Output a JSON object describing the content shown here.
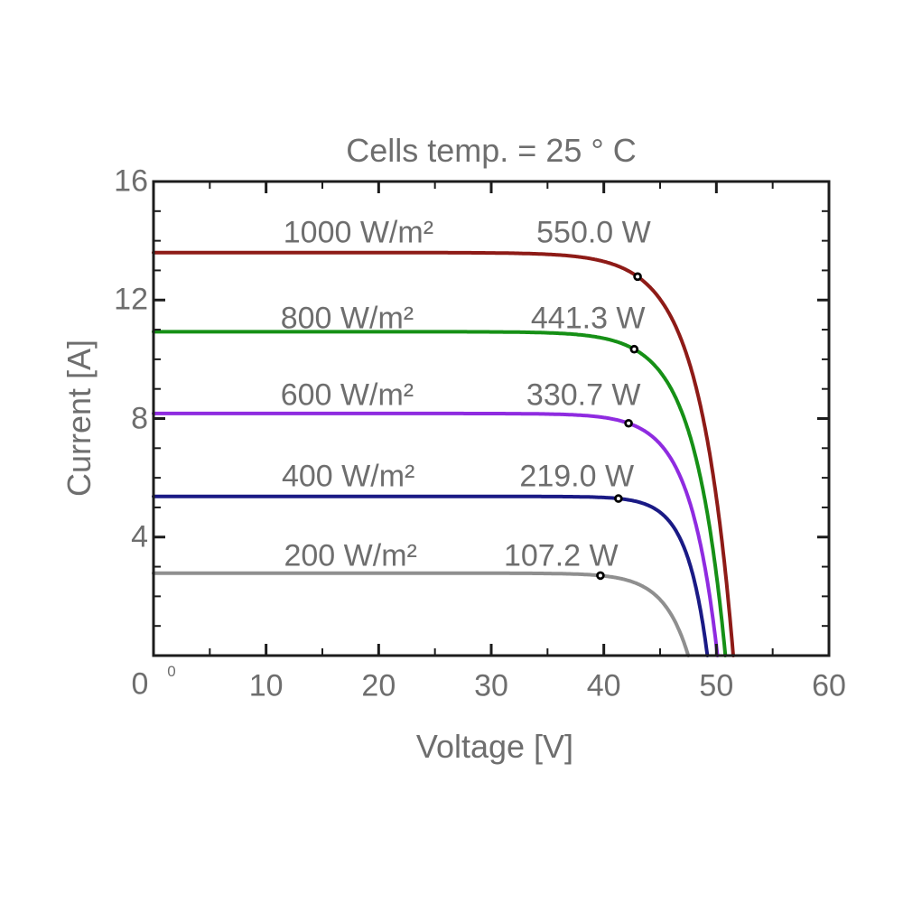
{
  "title": "Cells temp. = 25 ° C",
  "chart_data": {
    "type": "line",
    "title": "Cells temp. = 25 ° C",
    "xlabel": "Voltage [V]",
    "ylabel": "Current [A]",
    "xlim": [
      0,
      60
    ],
    "ylim": [
      0,
      16
    ],
    "x_major_tick_step": 10,
    "x_minor_tick_step": 5,
    "y_major_tick_step": 4,
    "y_minor_tick_step": 1,
    "x_tick_labels": [
      {
        "value": 0,
        "label": "0"
      },
      {
        "value": 10,
        "label": "10"
      },
      {
        "value": 20,
        "label": "20"
      },
      {
        "value": 30,
        "label": "30"
      },
      {
        "value": 40,
        "label": "40"
      },
      {
        "value": 50,
        "label": "50"
      },
      {
        "value": 60,
        "label": "60"
      }
    ],
    "y_tick_labels": [
      {
        "value": 16,
        "label": "16"
      },
      {
        "value": 12,
        "label": "12"
      },
      {
        "value": 8,
        "label": "8"
      },
      {
        "value": 4,
        "label": "4"
      }
    ],
    "origin_superscript": "0",
    "grid": false,
    "legend": "inline annotations above each curve",
    "axis_color": "#1c1c1c",
    "text_color": "#6e6e6e",
    "marker_style": "open black circle at maximum power point",
    "series": [
      {
        "name": "1000 W/m²",
        "irradiance_w_m2": 1000,
        "color": "#8e1b17",
        "isc_a": 13.6,
        "vmp_v": 43.0,
        "imp_a": 12.79,
        "voc_v": 51.5,
        "pmax_w": 550.0,
        "power_label": "550.0 W",
        "label_pos": {
          "v": 18.2,
          "i": 14.26
        },
        "power_label_pos": {
          "v": 39.1,
          "i": 14.26
        }
      },
      {
        "name": "800 W/m²",
        "irradiance_w_m2": 800,
        "color": "#169016",
        "isc_a": 10.93,
        "vmp_v": 42.7,
        "imp_a": 10.34,
        "voc_v": 50.8,
        "pmax_w": 441.3,
        "power_label": "441.3 W",
        "label_pos": {
          "v": 17.2,
          "i": 11.37
        },
        "power_label_pos": {
          "v": 38.6,
          "i": 11.37
        }
      },
      {
        "name": "600 W/m²",
        "irradiance_w_m2": 600,
        "color": "#8f2be0",
        "isc_a": 8.17,
        "vmp_v": 42.2,
        "imp_a": 7.84,
        "voc_v": 50.1,
        "pmax_w": 330.7,
        "power_label": "330.7 W",
        "label_pos": {
          "v": 17.2,
          "i": 8.78
        },
        "power_label_pos": {
          "v": 38.2,
          "i": 8.78
        }
      },
      {
        "name": "400 W/m²",
        "irradiance_w_m2": 400,
        "color": "#1a1a85",
        "isc_a": 5.37,
        "vmp_v": 41.3,
        "imp_a": 5.3,
        "voc_v": 49.2,
        "pmax_w": 219.0,
        "power_label": "219.0 W",
        "label_pos": {
          "v": 17.3,
          "i": 6.03
        },
        "power_label_pos": {
          "v": 37.6,
          "i": 6.03
        }
      },
      {
        "name": "200 W/m²",
        "irradiance_w_m2": 200,
        "color": "#8f8f8f",
        "isc_a": 2.78,
        "vmp_v": 39.7,
        "imp_a": 2.7,
        "voc_v": 47.5,
        "pmax_w": 107.2,
        "power_label": "107.2 W",
        "label_pos": {
          "v": 17.5,
          "i": 3.35
        },
        "power_label_pos": {
          "v": 36.2,
          "i": 3.35
        }
      }
    ]
  }
}
